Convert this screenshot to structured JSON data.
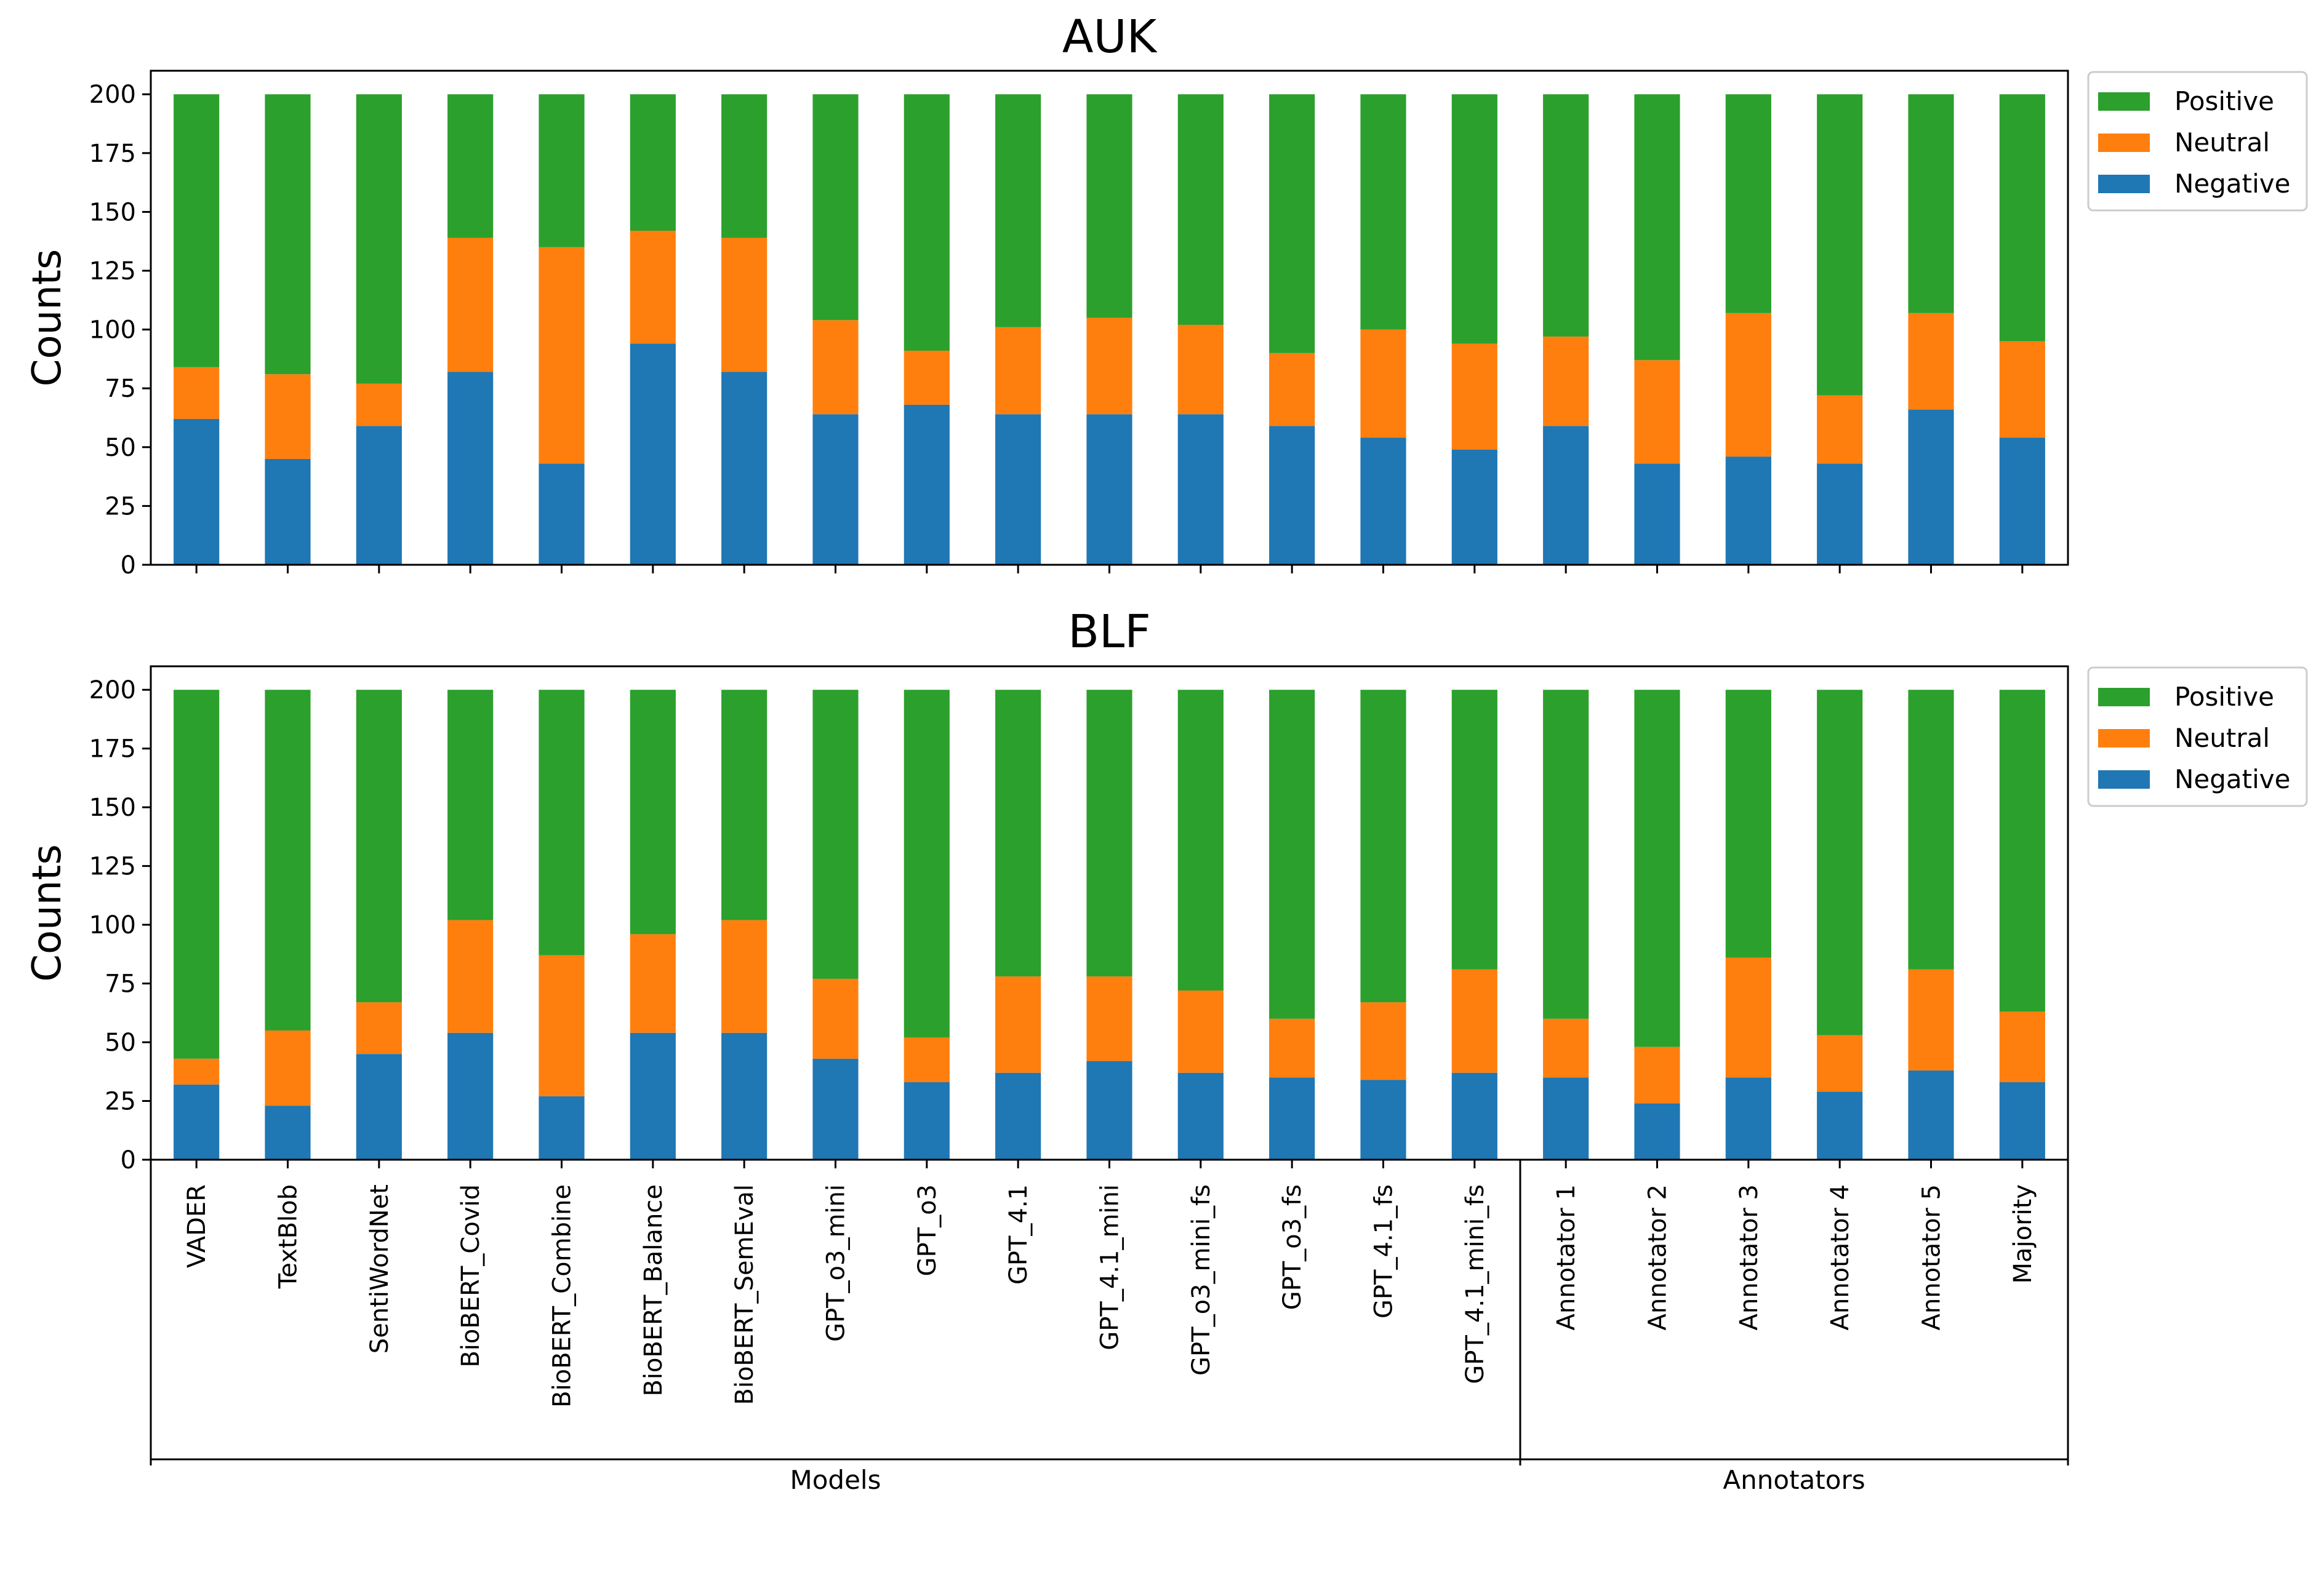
{
  "chart_data": [
    {
      "type": "bar",
      "stacked": true,
      "title": "AUK",
      "ylabel": "Counts",
      "xlabel": "",
      "ylim": [
        0,
        210
      ],
      "yticks": [
        0,
        25,
        50,
        75,
        100,
        125,
        150,
        175,
        200
      ],
      "categories": [
        "VADER",
        "TextBlob",
        "SentiWordNet",
        "BioBERT_Covid",
        "BioBERT_Combine",
        "BioBERT_Balance",
        "BioBERT_SemEval",
        "GPT_o3_mini",
        "GPT_o3",
        "GPT_4.1",
        "GPT_4.1_mini",
        "GPT_o3_mini_fs",
        "GPT_o3_fs",
        "GPT_4.1_fs",
        "GPT_4.1_mini_fs",
        "Annotator 1",
        "Annotator 2",
        "Annotator 3",
        "Annotator 4",
        "Annotator 5",
        "Majority"
      ],
      "series": [
        {
          "name": "Negative",
          "color": "#1f77b4",
          "values": [
            62,
            45,
            59,
            82,
            43,
            94,
            82,
            64,
            68,
            64,
            64,
            64,
            59,
            54,
            49,
            59,
            43,
            46,
            43,
            66,
            54
          ]
        },
        {
          "name": "Neutral",
          "color": "#ff7f0e",
          "values": [
            22,
            36,
            18,
            57,
            92,
            48,
            57,
            40,
            23,
            37,
            41,
            38,
            31,
            46,
            45,
            38,
            44,
            61,
            29,
            41,
            41
          ]
        },
        {
          "name": "Positive",
          "color": "#2ca02c",
          "values": [
            116,
            119,
            123,
            61,
            65,
            58,
            61,
            96,
            109,
            99,
            95,
            98,
            110,
            100,
            106,
            103,
            113,
            93,
            128,
            93,
            105
          ]
        }
      ],
      "legend": [
        "Positive",
        "Neutral",
        "Negative"
      ],
      "legend_position": "outside-top-right"
    },
    {
      "type": "bar",
      "stacked": true,
      "title": "BLF",
      "ylabel": "Counts",
      "xlabel": "",
      "ylim": [
        0,
        210
      ],
      "yticks": [
        0,
        25,
        50,
        75,
        100,
        125,
        150,
        175,
        200
      ],
      "categories": [
        "VADER",
        "TextBlob",
        "SentiWordNet",
        "BioBERT_Covid",
        "BioBERT_Combine",
        "BioBERT_Balance",
        "BioBERT_SemEval",
        "GPT_o3_mini",
        "GPT_o3",
        "GPT_4.1",
        "GPT_4.1_mini",
        "GPT_o3_mini_fs",
        "GPT_o3_fs",
        "GPT_4.1_fs",
        "GPT_4.1_mini_fs",
        "Annotator 1",
        "Annotator 2",
        "Annotator 3",
        "Annotator 4",
        "Annotator 5",
        "Majority"
      ],
      "series": [
        {
          "name": "Negative",
          "color": "#1f77b4",
          "values": [
            32,
            23,
            45,
            54,
            27,
            54,
            54,
            43,
            33,
            37,
            42,
            37,
            35,
            34,
            37,
            35,
            24,
            35,
            29,
            38,
            33
          ]
        },
        {
          "name": "Neutral",
          "color": "#ff7f0e",
          "values": [
            11,
            32,
            22,
            48,
            60,
            42,
            48,
            34,
            19,
            41,
            36,
            35,
            25,
            33,
            44,
            25,
            24,
            51,
            24,
            43,
            30
          ]
        },
        {
          "name": "Positive",
          "color": "#2ca02c",
          "values": [
            157,
            145,
            133,
            98,
            113,
            104,
            98,
            123,
            148,
            122,
            122,
            128,
            140,
            133,
            119,
            140,
            152,
            114,
            147,
            119,
            137
          ]
        }
      ],
      "legend": [
        "Positive",
        "Neutral",
        "Negative"
      ],
      "legend_position": "outside-top-right",
      "groups": [
        {
          "label": "Models",
          "from": 0,
          "to": 14
        },
        {
          "label": "Annotators",
          "from": 15,
          "to": 20
        }
      ]
    }
  ]
}
